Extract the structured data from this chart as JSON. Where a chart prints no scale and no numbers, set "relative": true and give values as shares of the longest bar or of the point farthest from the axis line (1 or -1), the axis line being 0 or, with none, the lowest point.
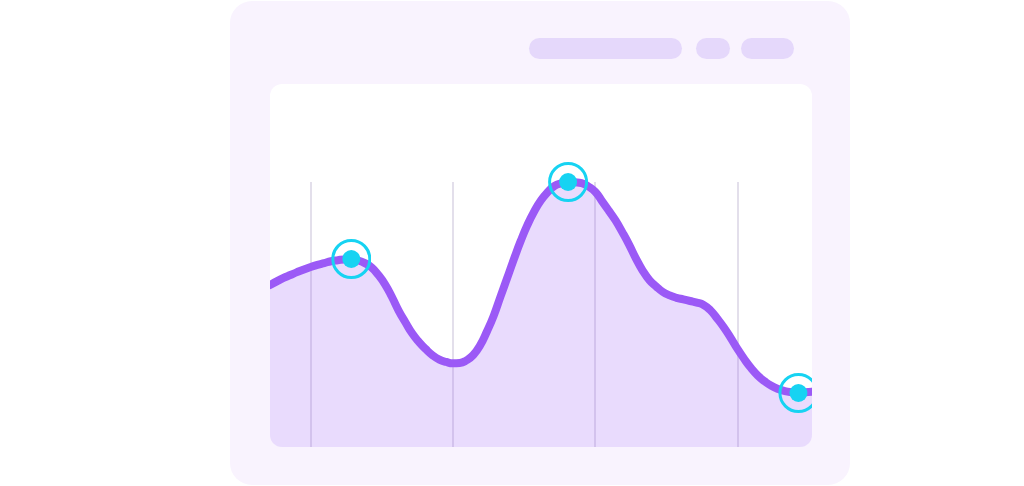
{
  "chart_data": {
    "type": "area",
    "relative": true,
    "grid": "x",
    "tick_labels": false,
    "line_style": "solid",
    "categories": [
      null,
      null,
      null,
      null,
      null,
      null,
      null,
      null,
      null,
      null,
      null,
      null,
      null,
      null,
      null,
      null,
      null,
      null,
      null,
      null,
      null,
      null,
      null,
      null,
      null,
      null,
      null,
      null,
      null,
      null,
      null,
      null,
      null,
      null,
      null,
      null,
      null,
      null,
      null,
      null,
      null,
      null,
      null,
      null,
      null,
      null,
      null,
      null,
      null,
      null,
      null,
      null,
      null,
      null,
      null,
      null,
      null,
      null,
      null,
      null,
      null,
      null,
      null,
      null,
      null,
      null,
      null,
      null,
      null,
      null,
      null,
      null,
      null,
      null,
      null,
      null,
      null,
      null,
      null,
      null,
      null
    ],
    "series": [
      {
        "color": "#9b59f6",
        "values": [
          0.611,
          0.625,
          0.638,
          0.649,
          0.66,
          0.67,
          0.679,
          0.687,
          0.694,
          0.701,
          0.705,
          0.708,
          0.708,
          0.704,
          0.694,
          0.677,
          0.649,
          0.613,
          0.566,
          0.514,
          0.47,
          0.428,
          0.396,
          0.369,
          0.346,
          0.33,
          0.321,
          0.316,
          0.317,
          0.327,
          0.347,
          0.383,
          0.435,
          0.494,
          0.566,
          0.637,
          0.709,
          0.777,
          0.838,
          0.889,
          0.931,
          0.962,
          0.985,
          0.995,
          1,
          0.999,
          0.996,
          0.983,
          0.963,
          0.928,
          0.892,
          0.855,
          0.811,
          0.764,
          0.712,
          0.666,
          0.63,
          0.606,
          0.585,
          0.572,
          0.563,
          0.557,
          0.551,
          0.545,
          0.536,
          0.516,
          0.485,
          0.451,
          0.412,
          0.37,
          0.332,
          0.298,
          0.269,
          0.248,
          0.231,
          0.219,
          0.211,
          0.207,
          0.205,
          0.207,
          0.209
        ]
      }
    ]
  }
}
